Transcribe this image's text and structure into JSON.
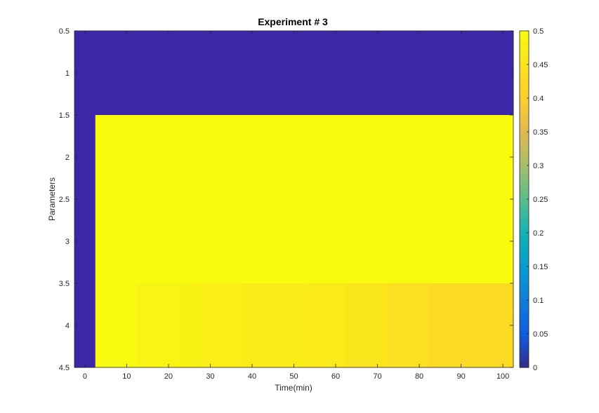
{
  "chart_data": {
    "type": "heatmap",
    "title": "Experiment # 3",
    "xlabel": "Time(min)",
    "ylabel": "Parameters",
    "xlim": [
      -2.5,
      102.5
    ],
    "ylim": [
      0.5,
      4.5
    ],
    "y_reversed": true,
    "xticks": [
      0,
      10,
      20,
      30,
      40,
      50,
      60,
      70,
      80,
      90,
      100
    ],
    "yticks": [
      0.5,
      1,
      1.5,
      2,
      2.5,
      3,
      3.5,
      4,
      4.5
    ],
    "colorbar": {
      "range": [
        0,
        0.5
      ],
      "ticks": [
        0,
        0.05,
        0.1,
        0.15,
        0.2,
        0.25,
        0.3,
        0.35,
        0.4,
        0.45,
        0.5
      ],
      "colormap": "parula"
    },
    "x_boundaries": [
      -2.5,
      2.5,
      12.5,
      22.5,
      27.5,
      37.5,
      52.5,
      62.5,
      72.5,
      82.5,
      102.5
    ],
    "rows": [
      {
        "y": 1,
        "values": [
          0,
          0,
          0,
          0,
          0,
          0,
          0,
          0,
          0,
          0
        ]
      },
      {
        "y": 2,
        "values": [
          0,
          0.5,
          0.5,
          0.5,
          0.5,
          0.5,
          0.5,
          0.5,
          0.5,
          0.5
        ]
      },
      {
        "y": 3,
        "values": [
          0,
          0.5,
          0.5,
          0.5,
          0.5,
          0.5,
          0.5,
          0.5,
          0.5,
          0.5
        ]
      },
      {
        "y": 4,
        "values": [
          0,
          0.495,
          0.485,
          0.48,
          0.475,
          0.47,
          0.465,
          0.455,
          0.445,
          0.43
        ]
      }
    ],
    "grid": false
  }
}
